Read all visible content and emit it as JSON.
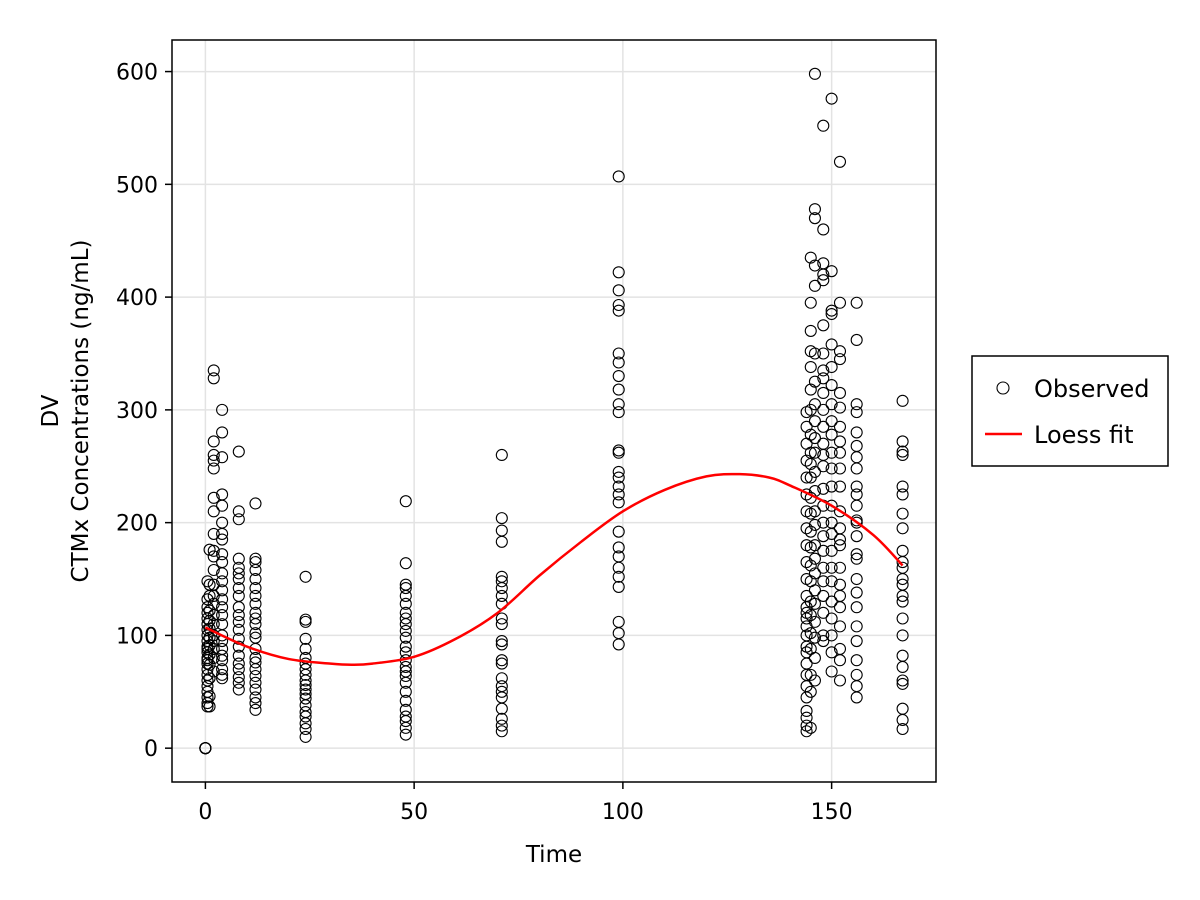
{
  "chart_data": {
    "type": "scatter",
    "xlabel": "Time",
    "ylabel_line1": "DV",
    "ylabel_line2": "CTMx Concentrations (ng/mL)",
    "xlim": [
      -8,
      175
    ],
    "ylim": [
      -30,
      628
    ],
    "xticks": [
      0,
      50,
      100,
      150
    ],
    "yticks": [
      0,
      100,
      200,
      300,
      400,
      500,
      600
    ],
    "grid": true,
    "legend_position": "right",
    "legend": [
      {
        "label": "Observed",
        "marker": "open-circle",
        "color": "#000000"
      },
      {
        "label": "Loess fit",
        "marker": "line",
        "color": "#ff0000"
      }
    ],
    "series": [
      {
        "name": "Observed",
        "type": "scatter",
        "color": "#000000",
        "groups": [
          {
            "x": 0,
            "y": [
              0,
              0,
              0,
              0,
              0
            ]
          },
          {
            "x": 0.5,
            "y": [
              37,
              40,
              45,
              50,
              55,
              60,
              65,
              70,
              75,
              78,
              80,
              85,
              88,
              90,
              95,
              100,
              105,
              110,
              115,
              120,
              125,
              132,
              148
            ]
          },
          {
            "x": 1,
            "y": [
              37,
              46,
              62,
              74,
              83,
              91,
              98,
              106,
              113,
              122,
              135,
              145,
              176
            ]
          },
          {
            "x": 2,
            "y": [
              68,
              80,
              88,
              95,
              100,
              110,
              118,
              128,
              135,
              145,
              158,
              170,
              175,
              190,
              210,
              222,
              248,
              255,
              260,
              272,
              328,
              335
            ]
          },
          {
            "x": 4,
            "y": [
              62,
              65,
              70,
              78,
              82,
              88,
              95,
              100,
              110,
              118,
              125,
              132,
              140,
              148,
              155,
              165,
              172,
              185,
              190,
              200,
              215,
              225,
              258,
              280,
              300
            ]
          },
          {
            "x": 8,
            "y": [
              52,
              58,
              63,
              70,
              75,
              82,
              90,
              97,
              105,
              112,
              118,
              125,
              135,
              142,
              150,
              155,
              160,
              168,
              203,
              210,
              263
            ]
          },
          {
            "x": 12,
            "y": [
              34,
              40,
              45,
              52,
              58,
              64,
              70,
              76,
              80,
              88,
              98,
              102,
              110,
              115,
              120,
              128,
              135,
              142,
              150,
              158,
              165,
              168,
              217
            ]
          },
          {
            "x": 24,
            "y": [
              10,
              17,
              22,
              28,
              32,
              38,
              44,
              48,
              52,
              56,
              60,
              65,
              70,
              75,
              80,
              88,
              97,
              112,
              114,
              152
            ]
          },
          {
            "x": 48,
            "y": [
              12,
              18,
              24,
              28,
              34,
              42,
              50,
              58,
              64,
              68,
              72,
              78,
              85,
              90,
              98,
              104,
              110,
              115,
              120,
              128,
              135,
              142,
              145,
              164,
              219
            ]
          },
          {
            "x": 71,
            "y": [
              15,
              20,
              26,
              35,
              45,
              50,
              55,
              62,
              75,
              78,
              92,
              95,
              110,
              115,
              128,
              135,
              142,
              148,
              152,
              183,
              193,
              204,
              260
            ]
          },
          {
            "x": 99,
            "y": [
              92,
              102,
              112,
              143,
              152,
              160,
              170,
              178,
              192,
              218,
              225,
              232,
              240,
              245,
              262,
              264,
              298,
              305,
              318,
              330,
              342,
              350,
              388,
              393,
              406,
              422,
              507
            ]
          },
          {
            "x": 144,
            "y": [
              15,
              20,
              27,
              33,
              45,
              55,
              65,
              75,
              85,
              90,
              100,
              108,
              115,
              120,
              125,
              135,
              150,
              165,
              180,
              195,
              210,
              225,
              240,
              255,
              270,
              285,
              298
            ]
          },
          {
            "x": 145,
            "y": [
              18,
              50,
              65,
              88,
              102,
              118,
              130,
              148,
              162,
              178,
              192,
              208,
              222,
              240,
              252,
              262,
              278,
              300,
              318,
              338,
              352,
              370,
              395,
              435
            ]
          },
          {
            "x": 146,
            "y": [
              60,
              80,
              98,
              112,
              128,
              140,
              155,
              168,
              180,
              198,
              210,
              228,
              245,
              262,
              275,
              290,
              305,
              325,
              350,
              410,
              428,
              470,
              478,
              598
            ]
          },
          {
            "x": 148,
            "y": [
              95,
              100,
              120,
              135,
              148,
              160,
              175,
              188,
              200,
              215,
              230,
              250,
              260,
              270,
              285,
              300,
              315,
              328,
              335,
              350,
              375,
              415,
              420,
              430,
              460,
              552
            ]
          },
          {
            "x": 150,
            "y": [
              68,
              85,
              100,
              115,
              130,
              148,
              160,
              175,
              190,
              200,
              215,
              232,
              248,
              262,
              278,
              290,
              305,
              322,
              338,
              358,
              385,
              388,
              423,
              576
            ]
          },
          {
            "x": 152,
            "y": [
              60,
              78,
              88,
              108,
              125,
              135,
              145,
              160,
              180,
              185,
              195,
              210,
              232,
              248,
              262,
              272,
              285,
              302,
              315,
              345,
              352,
              395,
              520
            ]
          },
          {
            "x": 156,
            "y": [
              45,
              55,
              65,
              78,
              95,
              108,
              125,
              138,
              150,
              168,
              172,
              188,
              200,
              202,
              215,
              225,
              232,
              248,
              258,
              268,
              280,
              298,
              305,
              362,
              395
            ]
          },
          {
            "x": 167,
            "y": [
              17,
              25,
              35,
              57,
              60,
              72,
              82,
              100,
              115,
              130,
              135,
              145,
              150,
              160,
              165,
              175,
              195,
              208,
              225,
              232,
              260,
              263,
              272,
              308
            ]
          }
        ]
      },
      {
        "name": "Loess fit",
        "type": "line",
        "color": "#ff0000",
        "x": [
          0,
          10,
          20,
          30,
          35,
          40,
          50,
          60,
          70,
          80,
          90,
          100,
          110,
          120,
          128,
          135,
          140,
          150,
          160,
          167
        ],
        "y": [
          107,
          90,
          79,
          75,
          74,
          75,
          81,
          97,
          120,
          153,
          183,
          210,
          229,
          241,
          243,
          240,
          233,
          215,
          189,
          162
        ]
      }
    ]
  }
}
